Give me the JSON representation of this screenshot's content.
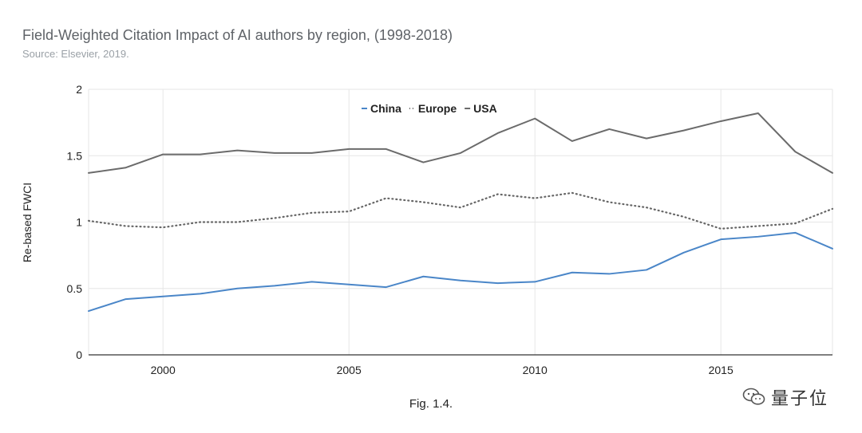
{
  "chart_data": {
    "type": "line",
    "title": "Field-Weighted Citation Impact of AI authors by region, (1998-2018)",
    "subtitle": "Source: Elsevier, 2019.",
    "ylabel": "Re-based FWCI",
    "xlabel": "",
    "xlim": [
      1998,
      2018
    ],
    "ylim": [
      0,
      2
    ],
    "x_ticks": [
      2000,
      2005,
      2010,
      2015
    ],
    "y_ticks": [
      0,
      0.5,
      1,
      1.5,
      2
    ],
    "x_tick_labels": [
      "2000",
      "2005",
      "2010",
      "2015"
    ],
    "y_tick_labels": [
      "0",
      "0.5",
      "1",
      "1.5",
      "2"
    ],
    "grid": true,
    "legend_position": "top-center",
    "x": [
      1998,
      1999,
      2000,
      2001,
      2002,
      2003,
      2004,
      2005,
      2006,
      2007,
      2008,
      2009,
      2010,
      2011,
      2012,
      2013,
      2014,
      2015,
      2016,
      2017,
      2018
    ],
    "series": [
      {
        "name": "China",
        "color": "#4a86c8",
        "style": "solid",
        "values": [
          0.33,
          0.42,
          0.44,
          0.46,
          0.5,
          0.52,
          0.55,
          0.53,
          0.51,
          0.59,
          0.56,
          0.54,
          0.55,
          0.62,
          0.61,
          0.64,
          0.77,
          0.87,
          0.89,
          0.92,
          0.8
        ]
      },
      {
        "name": "Europe",
        "color": "#666666",
        "style": "dotted",
        "values": [
          1.01,
          0.97,
          0.96,
          1.0,
          1.0,
          1.03,
          1.07,
          1.08,
          1.18,
          1.15,
          1.11,
          1.21,
          1.18,
          1.22,
          1.15,
          1.11,
          1.04,
          0.95,
          0.97,
          0.99,
          1.1
        ]
      },
      {
        "name": "USA",
        "color": "#6b6b6b",
        "style": "solid",
        "values": [
          1.37,
          1.41,
          1.51,
          1.51,
          1.54,
          1.52,
          1.52,
          1.55,
          1.55,
          1.45,
          1.52,
          1.67,
          1.78,
          1.61,
          1.7,
          1.63,
          1.69,
          1.76,
          1.82,
          1.53,
          1.37
        ]
      }
    ]
  },
  "caption": "Fig. 1.4.",
  "watermark": {
    "text": "量子位",
    "icon": "wechat-icon"
  }
}
